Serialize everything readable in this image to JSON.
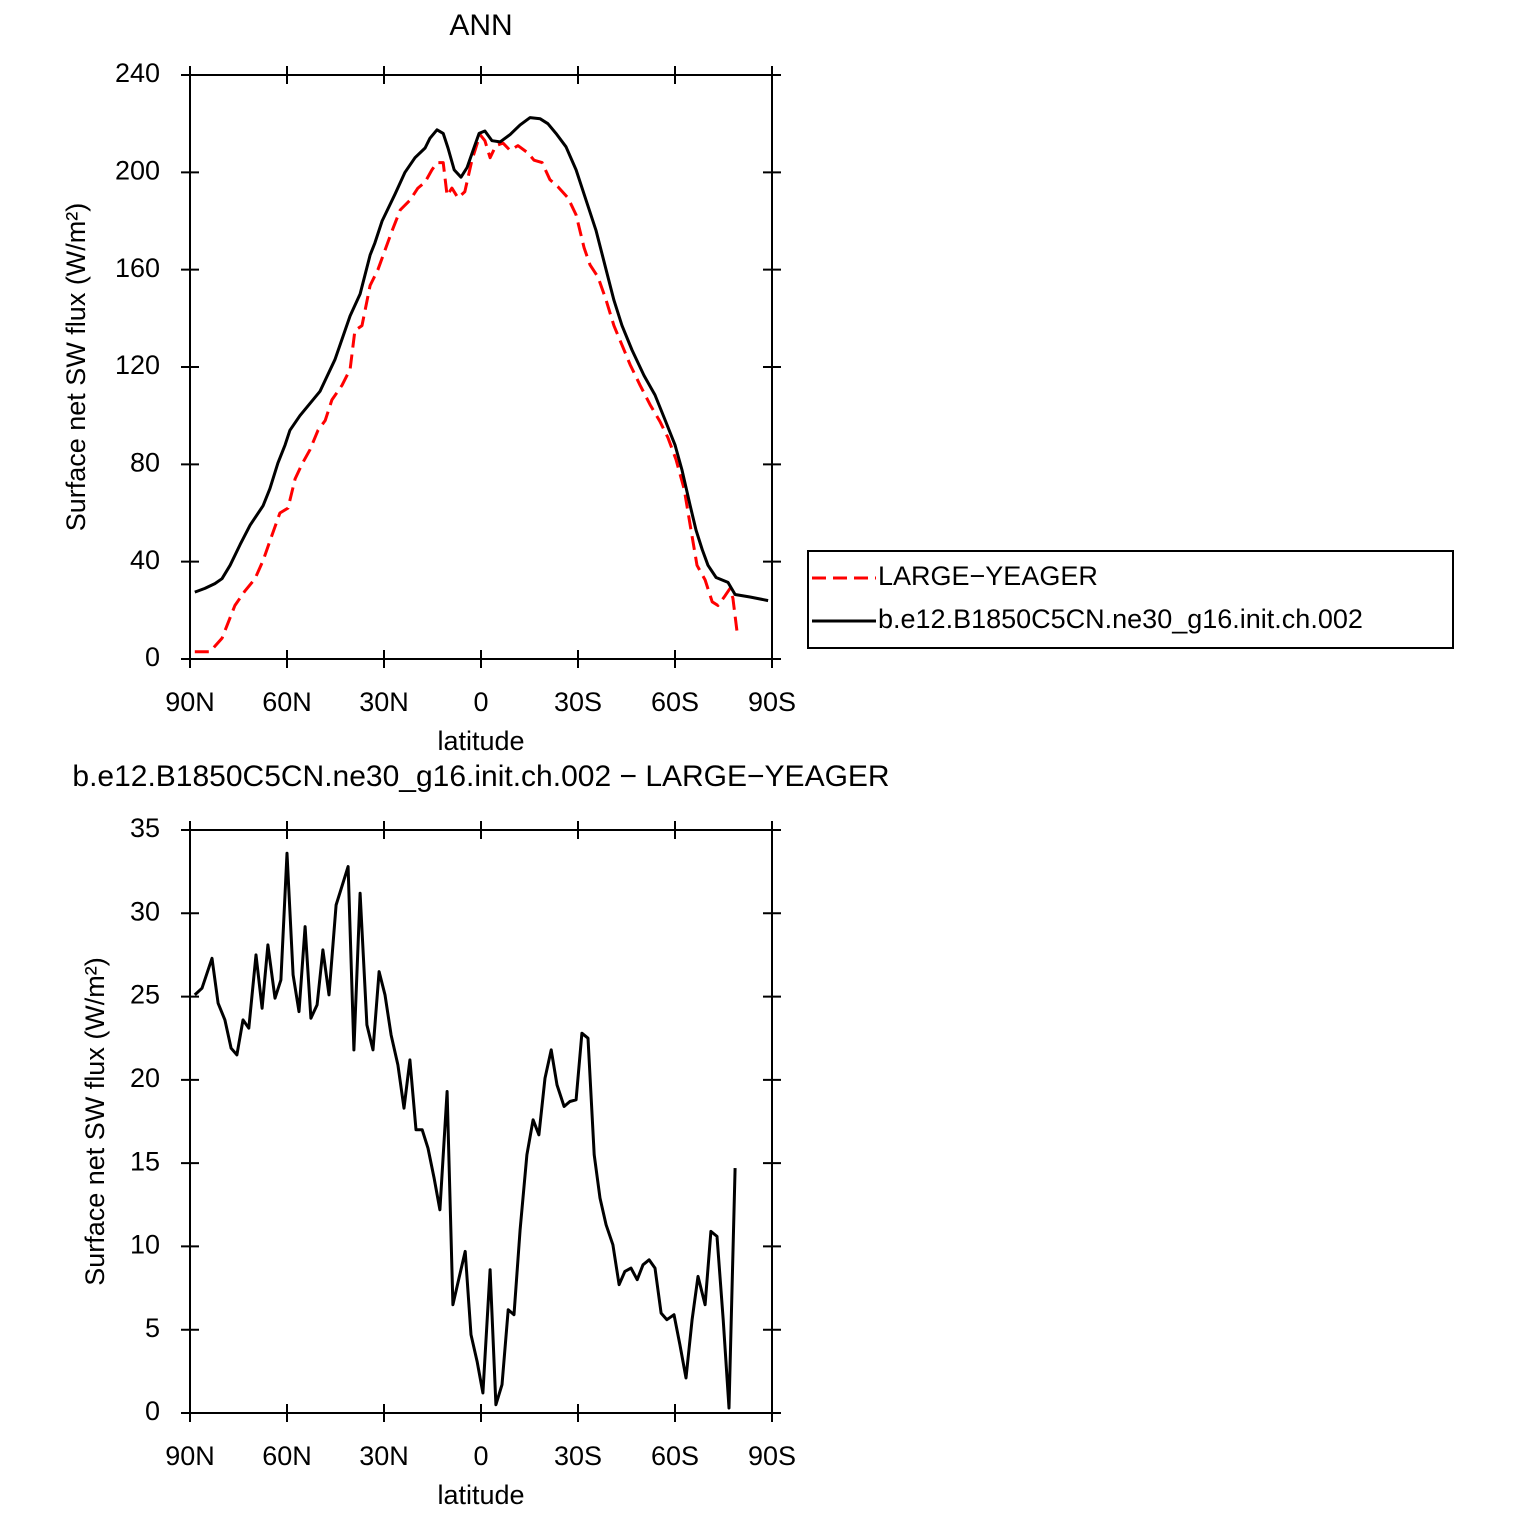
{
  "chart_data": [
    {
      "type": "line",
      "title": "ANN",
      "xlabel": "latitude",
      "ylabel": "Surface net SW flux (W/m²)",
      "xlim": [
        90,
        -90
      ],
      "ylim": [
        0,
        240
      ],
      "xticks": [
        {
          "value": 90,
          "label": "90N"
        },
        {
          "value": 60,
          "label": "60N"
        },
        {
          "value": 30,
          "label": "30N"
        },
        0,
        {
          "value": -30,
          "label": "30S"
        },
        {
          "value": -60,
          "label": "60S"
        },
        {
          "value": -90,
          "label": "90S"
        }
      ],
      "yticks": [
        0,
        40,
        80,
        120,
        160,
        200,
        240
      ],
      "legend": "right",
      "series": [
        {
          "name": "LARGE−YEAGER",
          "color": "#ff0000",
          "dashed": true,
          "x": [
            88.5,
            83.8,
            80.1,
            76.1,
            73,
            69.9,
            67.4,
            64.6,
            62.2,
            59.7,
            57.5,
            55.4,
            52.9,
            50.4,
            48.2,
            46.1,
            43,
            40.5,
            39,
            36.8,
            34.3,
            31.9,
            29.7,
            27.5,
            25,
            22,
            19.5,
            17.3,
            15.2,
            13.6,
            11.7,
            10.5,
            9,
            7.1,
            5,
            2.8,
            0.3,
            -1.2,
            -2.8,
            -4.6,
            -6.8,
            -9,
            -11.4,
            -14.5,
            -16.4,
            -18.9,
            -21.3,
            -23.8,
            -26.9,
            -29.4,
            -31.9,
            -33.7,
            -36.2,
            -38.7,
            -41.1,
            -43.6,
            -46.1,
            -49.2,
            -52.3,
            -55.4,
            -57.8,
            -60.3,
            -62.8,
            -64.7,
            -66.8,
            -69.3,
            -71.5,
            -73.3,
            -75.5,
            -77,
            -77.9,
            -79.2
          ],
          "values": [
            3,
            3,
            8.5,
            22,
            28,
            33,
            40.5,
            51,
            60,
            62,
            74,
            80,
            86,
            94,
            98,
            106.5,
            112.5,
            119,
            135,
            137,
            153.5,
            160,
            168,
            176,
            184.5,
            188.5,
            193.5,
            196,
            201,
            204,
            204,
            190.5,
            193.5,
            189.5,
            192,
            205,
            215.5,
            213,
            206,
            211,
            212,
            209,
            211,
            208,
            205,
            204,
            197,
            194,
            189.5,
            182.5,
            169,
            162,
            157,
            147.5,
            137,
            129,
            121,
            112.5,
            104.5,
            97.5,
            91,
            82,
            70,
            55,
            38.5,
            32.5,
            23.5,
            22,
            26,
            29,
            25,
            11
          ]
        },
        {
          "name": "b.e12.B1850C5CN.ne30_g16.init.ch.002",
          "color": "#000000",
          "dashed": false,
          "x": [
            88.5,
            85.4,
            82.3,
            80.1,
            77.6,
            74.5,
            71.4,
            67.4,
            65.3,
            62.8,
            60.6,
            59.1,
            56,
            49.8,
            45.2,
            40.5,
            37.4,
            34.3,
            32.8,
            30.6,
            26.6,
            23.5,
            20.4,
            17.3,
            15.8,
            13.6,
            11.7,
            10.2,
            8.3,
            6.2,
            4.3,
            2.2,
            0.6,
            -1.2,
            -3.4,
            -5.9,
            -9,
            -12.1,
            -15.2,
            -18.3,
            -20.7,
            -23.2,
            -26.3,
            -29.4,
            -32.5,
            -35.6,
            -38.7,
            -41.1,
            -43.6,
            -46.7,
            -50.4,
            -53.8,
            -57,
            -60,
            -62.2,
            -64.7,
            -66.5,
            -68.4,
            -70.2,
            -72.7,
            -76.4,
            -78.6,
            -83.2,
            -88.8
          ],
          "values": [
            27.5,
            29,
            31,
            33,
            38.5,
            47,
            55,
            63,
            70,
            80.5,
            88,
            94,
            100,
            110,
            123,
            141,
            150,
            166,
            171,
            180,
            191,
            200,
            206,
            210,
            214,
            217.5,
            216,
            210,
            201,
            198,
            202,
            210,
            216,
            217,
            213,
            212.5,
            215.5,
            219.5,
            222.5,
            222,
            220,
            216,
            210.5,
            201,
            188.5,
            176,
            160,
            147.5,
            137,
            127,
            116.5,
            108.5,
            98,
            88,
            77.5,
            63,
            53,
            45,
            38.5,
            33.5,
            31.5,
            26.5,
            25.5,
            24
          ]
        }
      ]
    },
    {
      "type": "line",
      "title": "b.e12.B1850C5CN.ne30_g16.init.ch.002 − LARGE−YEAGER",
      "xlabel": "latitude",
      "ylabel": "Surface net SW flux (W/m²)",
      "xlim": [
        90,
        -90
      ],
      "ylim": [
        0,
        35
      ],
      "xticks": [
        {
          "value": 90,
          "label": "90N"
        },
        {
          "value": 60,
          "label": "60N"
        },
        {
          "value": 30,
          "label": "30N"
        },
        0,
        {
          "value": -30,
          "label": "30S"
        },
        {
          "value": -60,
          "label": "60S"
        },
        {
          "value": -90,
          "label": "90S"
        }
      ],
      "yticks": [
        0,
        5,
        10,
        15,
        20,
        25,
        30,
        35
      ],
      "series": [
        {
          "color": "#000000",
          "dashed": false,
          "x": [
            88.5,
            86.3,
            83.2,
            81.3,
            79.2,
            77.3,
            75.5,
            73.6,
            71.8,
            69.6,
            67.7,
            65.9,
            63.7,
            61.9,
            60,
            58.1,
            56.3,
            54.4,
            52.6,
            50.7,
            48.9,
            47,
            44.8,
            41.1,
            39.3,
            37.4,
            35.3,
            33.4,
            31.5,
            29.7,
            27.8,
            25.7,
            23.8,
            22,
            20.1,
            18.2,
            16.4,
            14.5,
            12.7,
            10.5,
            8.7,
            6.8,
            4.9,
            3.1,
            1.2,
            -0.6,
            -2.8,
            -4.6,
            -6.5,
            -8.4,
            -10.2,
            -12.1,
            -14.2,
            -16.1,
            -17.9,
            -19.8,
            -21.7,
            -23.5,
            -25.7,
            -27.5,
            -29.4,
            -31.2,
            -33.1,
            -35,
            -36.8,
            -38.7,
            -40.8,
            -42.7,
            -44.5,
            -46.4,
            -48.3,
            -50.1,
            -52,
            -53.8,
            -55.7,
            -57.5,
            -59.7,
            -61.5,
            -63.4,
            -65.3,
            -67.1,
            -69.3,
            -71.1,
            -73,
            -74.9,
            -76.7,
            -78.6
          ],
          "values": [
            25.1,
            25.5,
            27.3,
            24.6,
            23.6,
            21.9,
            21.5,
            23.6,
            23.1,
            27.5,
            24.3,
            28.1,
            24.9,
            26,
            33.6,
            26.3,
            24.1,
            29.2,
            23.7,
            24.5,
            27.8,
            25.1,
            30.5,
            32.8,
            21.8,
            31.2,
            23.3,
            21.8,
            26.5,
            25.1,
            22.7,
            20.9,
            18.3,
            21.2,
            17,
            17,
            15.9,
            14.1,
            12.2,
            19.3,
            6.5,
            8.1,
            9.7,
            4.7,
            3.1,
            1.2,
            8.6,
            0.5,
            1.7,
            6.2,
            5.9,
            11,
            15.5,
            17.6,
            16.7,
            20.1,
            21.8,
            19.7,
            18.4,
            18.7,
            18.8,
            22.8,
            22.5,
            15.5,
            12.9,
            11.3,
            10.1,
            7.7,
            8.5,
            8.7,
            8,
            8.9,
            9.2,
            8.7,
            6,
            5.6,
            5.9,
            4.1,
            2.1,
            5.6,
            8.2,
            6.5,
            10.9,
            10.6,
            5.6,
            0.3,
            14.7
          ]
        }
      ]
    }
  ]
}
